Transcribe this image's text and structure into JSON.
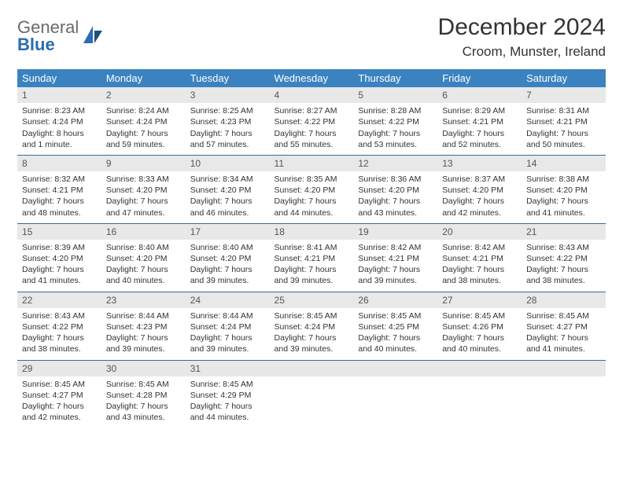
{
  "brand": {
    "part1": "General",
    "part2": "Blue"
  },
  "title": "December 2024",
  "location": "Croom, Munster, Ireland",
  "colors": {
    "header_bg": "#3b83c0",
    "header_text": "#ffffff",
    "daynum_bg": "#e8e8e8",
    "row_border": "#3b6a8f",
    "logo_gray": "#6a6a6a",
    "logo_blue": "#2b6cb0",
    "page_bg": "#ffffff"
  },
  "day_headers": [
    "Sunday",
    "Monday",
    "Tuesday",
    "Wednesday",
    "Thursday",
    "Friday",
    "Saturday"
  ],
  "weeks": [
    [
      {
        "n": "1",
        "sr": "Sunrise: 8:23 AM",
        "ss": "Sunset: 4:24 PM",
        "dl": "Daylight: 8 hours and 1 minute."
      },
      {
        "n": "2",
        "sr": "Sunrise: 8:24 AM",
        "ss": "Sunset: 4:24 PM",
        "dl": "Daylight: 7 hours and 59 minutes."
      },
      {
        "n": "3",
        "sr": "Sunrise: 8:25 AM",
        "ss": "Sunset: 4:23 PM",
        "dl": "Daylight: 7 hours and 57 minutes."
      },
      {
        "n": "4",
        "sr": "Sunrise: 8:27 AM",
        "ss": "Sunset: 4:22 PM",
        "dl": "Daylight: 7 hours and 55 minutes."
      },
      {
        "n": "5",
        "sr": "Sunrise: 8:28 AM",
        "ss": "Sunset: 4:22 PM",
        "dl": "Daylight: 7 hours and 53 minutes."
      },
      {
        "n": "6",
        "sr": "Sunrise: 8:29 AM",
        "ss": "Sunset: 4:21 PM",
        "dl": "Daylight: 7 hours and 52 minutes."
      },
      {
        "n": "7",
        "sr": "Sunrise: 8:31 AM",
        "ss": "Sunset: 4:21 PM",
        "dl": "Daylight: 7 hours and 50 minutes."
      }
    ],
    [
      {
        "n": "8",
        "sr": "Sunrise: 8:32 AM",
        "ss": "Sunset: 4:21 PM",
        "dl": "Daylight: 7 hours and 48 minutes."
      },
      {
        "n": "9",
        "sr": "Sunrise: 8:33 AM",
        "ss": "Sunset: 4:20 PM",
        "dl": "Daylight: 7 hours and 47 minutes."
      },
      {
        "n": "10",
        "sr": "Sunrise: 8:34 AM",
        "ss": "Sunset: 4:20 PM",
        "dl": "Daylight: 7 hours and 46 minutes."
      },
      {
        "n": "11",
        "sr": "Sunrise: 8:35 AM",
        "ss": "Sunset: 4:20 PM",
        "dl": "Daylight: 7 hours and 44 minutes."
      },
      {
        "n": "12",
        "sr": "Sunrise: 8:36 AM",
        "ss": "Sunset: 4:20 PM",
        "dl": "Daylight: 7 hours and 43 minutes."
      },
      {
        "n": "13",
        "sr": "Sunrise: 8:37 AM",
        "ss": "Sunset: 4:20 PM",
        "dl": "Daylight: 7 hours and 42 minutes."
      },
      {
        "n": "14",
        "sr": "Sunrise: 8:38 AM",
        "ss": "Sunset: 4:20 PM",
        "dl": "Daylight: 7 hours and 41 minutes."
      }
    ],
    [
      {
        "n": "15",
        "sr": "Sunrise: 8:39 AM",
        "ss": "Sunset: 4:20 PM",
        "dl": "Daylight: 7 hours and 41 minutes."
      },
      {
        "n": "16",
        "sr": "Sunrise: 8:40 AM",
        "ss": "Sunset: 4:20 PM",
        "dl": "Daylight: 7 hours and 40 minutes."
      },
      {
        "n": "17",
        "sr": "Sunrise: 8:40 AM",
        "ss": "Sunset: 4:20 PM",
        "dl": "Daylight: 7 hours and 39 minutes."
      },
      {
        "n": "18",
        "sr": "Sunrise: 8:41 AM",
        "ss": "Sunset: 4:21 PM",
        "dl": "Daylight: 7 hours and 39 minutes."
      },
      {
        "n": "19",
        "sr": "Sunrise: 8:42 AM",
        "ss": "Sunset: 4:21 PM",
        "dl": "Daylight: 7 hours and 39 minutes."
      },
      {
        "n": "20",
        "sr": "Sunrise: 8:42 AM",
        "ss": "Sunset: 4:21 PM",
        "dl": "Daylight: 7 hours and 38 minutes."
      },
      {
        "n": "21",
        "sr": "Sunrise: 8:43 AM",
        "ss": "Sunset: 4:22 PM",
        "dl": "Daylight: 7 hours and 38 minutes."
      }
    ],
    [
      {
        "n": "22",
        "sr": "Sunrise: 8:43 AM",
        "ss": "Sunset: 4:22 PM",
        "dl": "Daylight: 7 hours and 38 minutes."
      },
      {
        "n": "23",
        "sr": "Sunrise: 8:44 AM",
        "ss": "Sunset: 4:23 PM",
        "dl": "Daylight: 7 hours and 39 minutes."
      },
      {
        "n": "24",
        "sr": "Sunrise: 8:44 AM",
        "ss": "Sunset: 4:24 PM",
        "dl": "Daylight: 7 hours and 39 minutes."
      },
      {
        "n": "25",
        "sr": "Sunrise: 8:45 AM",
        "ss": "Sunset: 4:24 PM",
        "dl": "Daylight: 7 hours and 39 minutes."
      },
      {
        "n": "26",
        "sr": "Sunrise: 8:45 AM",
        "ss": "Sunset: 4:25 PM",
        "dl": "Daylight: 7 hours and 40 minutes."
      },
      {
        "n": "27",
        "sr": "Sunrise: 8:45 AM",
        "ss": "Sunset: 4:26 PM",
        "dl": "Daylight: 7 hours and 40 minutes."
      },
      {
        "n": "28",
        "sr": "Sunrise: 8:45 AM",
        "ss": "Sunset: 4:27 PM",
        "dl": "Daylight: 7 hours and 41 minutes."
      }
    ],
    [
      {
        "n": "29",
        "sr": "Sunrise: 8:45 AM",
        "ss": "Sunset: 4:27 PM",
        "dl": "Daylight: 7 hours and 42 minutes."
      },
      {
        "n": "30",
        "sr": "Sunrise: 8:45 AM",
        "ss": "Sunset: 4:28 PM",
        "dl": "Daylight: 7 hours and 43 minutes."
      },
      {
        "n": "31",
        "sr": "Sunrise: 8:45 AM",
        "ss": "Sunset: 4:29 PM",
        "dl": "Daylight: 7 hours and 44 minutes."
      },
      {
        "empty": true
      },
      {
        "empty": true
      },
      {
        "empty": true
      },
      {
        "empty": true
      }
    ]
  ]
}
